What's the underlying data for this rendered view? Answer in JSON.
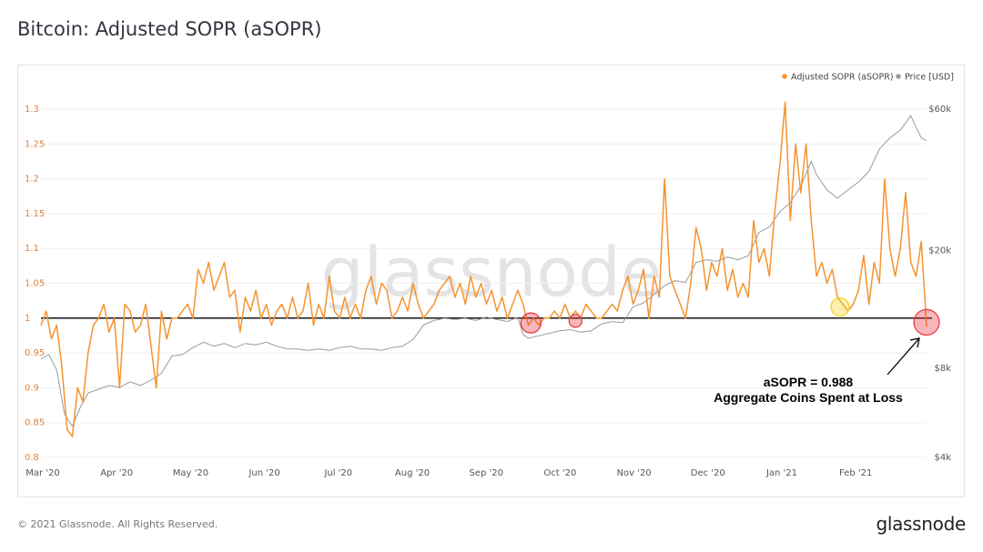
{
  "header": {
    "title": "Bitcoin: Adjusted SOPR (aSOPR)"
  },
  "footer": {
    "copyright": "© 2021 Glassnode. All Rights Reserved.",
    "logo": "glassnode"
  },
  "watermark": "glassnode",
  "colors": {
    "asopr": "#f5932f",
    "price": "#9a9a9a",
    "baseline": "#000000",
    "loss_marker": "#e8303a",
    "gain_marker": "#f2d21c"
  },
  "chart_data": {
    "type": "line",
    "title": "Bitcoin: Adjusted SOPR (aSOPR)",
    "x_ticks": [
      "Mar '20",
      "Apr '20",
      "May '20",
      "Jun '20",
      "Jul '20",
      "Aug '20",
      "Sep '20",
      "Oct '20",
      "Nov '20",
      "Dec '20",
      "Jan '21",
      "Feb '21"
    ],
    "y_left": {
      "ticks": [
        "1.3",
        "1.25",
        "1.2",
        "1.15",
        "1.1",
        "1.05",
        "1",
        "0.95",
        "0.9",
        "0.85",
        "0.8"
      ],
      "range": [
        0.8,
        1.3
      ]
    },
    "y_right": {
      "ticks": [
        "$60k",
        "$20k",
        "$8k",
        "$4k"
      ],
      "scale": "log",
      "range": [
        4000,
        60000
      ]
    },
    "legend": {
      "position": "top-right",
      "items": [
        {
          "label": "Adjusted SOPR (aSOPR)",
          "color": "#f5932f"
        },
        {
          "label": "Price [USD]",
          "color": "#9a9a9a"
        }
      ]
    },
    "baseline": 1.0,
    "annotation": {
      "line1": "aSOPR = 0.988",
      "line2": "Aggregate Coins Spent at Loss"
    },
    "series": [
      {
        "name": "Adjusted SOPR (aSOPR)",
        "axis": "left",
        "points": [
          [
            0,
            0.99
          ],
          [
            2,
            1.01
          ],
          [
            4,
            0.97
          ],
          [
            6,
            0.99
          ],
          [
            8,
            0.93
          ],
          [
            10,
            0.84
          ],
          [
            12,
            0.83
          ],
          [
            14,
            0.9
          ],
          [
            16,
            0.88
          ],
          [
            18,
            0.95
          ],
          [
            20,
            0.99
          ],
          [
            22,
            1.0
          ],
          [
            24,
            1.02
          ],
          [
            26,
            0.98
          ],
          [
            28,
            1.0
          ],
          [
            30,
            0.9
          ],
          [
            32,
            1.02
          ],
          [
            34,
            1.01
          ],
          [
            36,
            0.98
          ],
          [
            38,
            0.99
          ],
          [
            40,
            1.02
          ],
          [
            42,
            0.96
          ],
          [
            44,
            0.9
          ],
          [
            46,
            1.01
          ],
          [
            48,
            0.97
          ],
          [
            50,
            1.0
          ],
          [
            52,
            1.0
          ],
          [
            54,
            1.01
          ],
          [
            56,
            1.02
          ],
          [
            58,
            1.0
          ],
          [
            60,
            1.07
          ],
          [
            62,
            1.05
          ],
          [
            64,
            1.08
          ],
          [
            66,
            1.04
          ],
          [
            68,
            1.06
          ],
          [
            70,
            1.08
          ],
          [
            72,
            1.03
          ],
          [
            74,
            1.04
          ],
          [
            76,
            0.98
          ],
          [
            78,
            1.03
          ],
          [
            80,
            1.01
          ],
          [
            82,
            1.04
          ],
          [
            84,
            1.0
          ],
          [
            86,
            1.02
          ],
          [
            88,
            0.99
          ],
          [
            90,
            1.01
          ],
          [
            92,
            1.02
          ],
          [
            94,
            1.0
          ],
          [
            96,
            1.03
          ],
          [
            98,
            1.0
          ],
          [
            100,
            1.01
          ],
          [
            102,
            1.05
          ],
          [
            104,
            0.99
          ],
          [
            106,
            1.02
          ],
          [
            108,
            1.0
          ],
          [
            110,
            1.06
          ],
          [
            112,
            1.01
          ],
          [
            114,
            1.0
          ],
          [
            116,
            1.03
          ],
          [
            118,
            1.0
          ],
          [
            120,
            1.02
          ],
          [
            122,
            1.0
          ],
          [
            124,
            1.04
          ],
          [
            126,
            1.06
          ],
          [
            128,
            1.02
          ],
          [
            130,
            1.05
          ],
          [
            132,
            1.04
          ],
          [
            134,
            1.0
          ],
          [
            136,
            1.01
          ],
          [
            138,
            1.03
          ],
          [
            140,
            1.01
          ],
          [
            142,
            1.05
          ],
          [
            144,
            1.02
          ],
          [
            146,
            1.0
          ],
          [
            148,
            1.01
          ],
          [
            150,
            1.02
          ],
          [
            152,
            1.04
          ],
          [
            154,
            1.05
          ],
          [
            156,
            1.06
          ],
          [
            158,
            1.03
          ],
          [
            160,
            1.05
          ],
          [
            162,
            1.02
          ],
          [
            164,
            1.06
          ],
          [
            166,
            1.03
          ],
          [
            168,
            1.05
          ],
          [
            170,
            1.02
          ],
          [
            172,
            1.04
          ],
          [
            174,
            1.01
          ],
          [
            176,
            1.03
          ],
          [
            178,
            1.0
          ],
          [
            180,
            1.02
          ],
          [
            182,
            1.04
          ],
          [
            184,
            1.02
          ],
          [
            186,
            0.99
          ],
          [
            188,
            1.0
          ],
          [
            190,
            0.99
          ],
          [
            192,
            1.0
          ],
          [
            194,
            1.0
          ],
          [
            196,
            1.01
          ],
          [
            198,
            1.0
          ],
          [
            200,
            1.02
          ],
          [
            202,
            1.0
          ],
          [
            204,
            1.01
          ],
          [
            206,
            1.0
          ],
          [
            208,
            1.02
          ],
          [
            210,
            1.01
          ],
          [
            212,
            1.0
          ],
          [
            214,
            1.0
          ],
          [
            216,
            1.01
          ],
          [
            218,
            1.02
          ],
          [
            220,
            1.01
          ],
          [
            222,
            1.04
          ],
          [
            224,
            1.06
          ],
          [
            226,
            1.02
          ],
          [
            228,
            1.04
          ],
          [
            230,
            1.07
          ],
          [
            232,
            1.0
          ],
          [
            234,
            1.06
          ],
          [
            236,
            1.03
          ],
          [
            238,
            1.2
          ],
          [
            240,
            1.06
          ],
          [
            242,
            1.04
          ],
          [
            244,
            1.02
          ],
          [
            246,
            1.0
          ],
          [
            248,
            1.05
          ],
          [
            250,
            1.13
          ],
          [
            252,
            1.1
          ],
          [
            254,
            1.04
          ],
          [
            256,
            1.08
          ],
          [
            258,
            1.06
          ],
          [
            260,
            1.1
          ],
          [
            262,
            1.04
          ],
          [
            264,
            1.07
          ],
          [
            266,
            1.03
          ],
          [
            268,
            1.05
          ],
          [
            270,
            1.03
          ],
          [
            272,
            1.14
          ],
          [
            274,
            1.08
          ],
          [
            276,
            1.1
          ],
          [
            278,
            1.06
          ],
          [
            280,
            1.15
          ],
          [
            282,
            1.22
          ],
          [
            284,
            1.31
          ],
          [
            286,
            1.14
          ],
          [
            288,
            1.25
          ],
          [
            290,
            1.18
          ],
          [
            292,
            1.25
          ],
          [
            294,
            1.14
          ],
          [
            296,
            1.06
          ],
          [
            298,
            1.08
          ],
          [
            300,
            1.05
          ],
          [
            302,
            1.07
          ],
          [
            304,
            1.03
          ],
          [
            306,
            1.02
          ],
          [
            308,
            1.01
          ],
          [
            310,
            1.02
          ],
          [
            312,
            1.04
          ],
          [
            314,
            1.09
          ],
          [
            316,
            1.02
          ],
          [
            318,
            1.08
          ],
          [
            320,
            1.05
          ],
          [
            322,
            1.2
          ],
          [
            324,
            1.1
          ],
          [
            326,
            1.06
          ],
          [
            328,
            1.1
          ],
          [
            330,
            1.18
          ],
          [
            332,
            1.08
          ],
          [
            334,
            1.06
          ],
          [
            336,
            1.11
          ],
          [
            338,
            0.988
          ]
        ]
      },
      {
        "name": "Price [USD]",
        "axis": "right",
        "points": [
          [
            0,
            8600
          ],
          [
            3,
            8900
          ],
          [
            6,
            7900
          ],
          [
            9,
            5600
          ],
          [
            12,
            5100
          ],
          [
            15,
            5900
          ],
          [
            18,
            6600
          ],
          [
            22,
            6800
          ],
          [
            26,
            7000
          ],
          [
            30,
            6900
          ],
          [
            34,
            7200
          ],
          [
            38,
            7000
          ],
          [
            42,
            7300
          ],
          [
            46,
            7700
          ],
          [
            50,
            8800
          ],
          [
            54,
            8900
          ],
          [
            58,
            9400
          ],
          [
            62,
            9800
          ],
          [
            66,
            9500
          ],
          [
            70,
            9700
          ],
          [
            74,
            9400
          ],
          [
            78,
            9700
          ],
          [
            82,
            9600
          ],
          [
            86,
            9800
          ],
          [
            90,
            9500
          ],
          [
            94,
            9300
          ],
          [
            98,
            9300
          ],
          [
            102,
            9200
          ],
          [
            106,
            9300
          ],
          [
            110,
            9200
          ],
          [
            114,
            9400
          ],
          [
            118,
            9500
          ],
          [
            122,
            9300
          ],
          [
            126,
            9300
          ],
          [
            130,
            9200
          ],
          [
            134,
            9400
          ],
          [
            138,
            9500
          ],
          [
            142,
            10000
          ],
          [
            146,
            11200
          ],
          [
            150,
            11600
          ],
          [
            154,
            11800
          ],
          [
            158,
            11700
          ],
          [
            162,
            11800
          ],
          [
            166,
            11600
          ],
          [
            170,
            11900
          ],
          [
            174,
            11700
          ],
          [
            178,
            11500
          ],
          [
            182,
            11900
          ],
          [
            184,
            10400
          ],
          [
            186,
            10100
          ],
          [
            190,
            10300
          ],
          [
            194,
            10500
          ],
          [
            198,
            10700
          ],
          [
            202,
            10800
          ],
          [
            206,
            10600
          ],
          [
            210,
            10700
          ],
          [
            214,
            11300
          ],
          [
            218,
            11500
          ],
          [
            222,
            11400
          ],
          [
            226,
            12900
          ],
          [
            230,
            13300
          ],
          [
            234,
            14200
          ],
          [
            238,
            15200
          ],
          [
            242,
            15800
          ],
          [
            246,
            15600
          ],
          [
            250,
            18200
          ],
          [
            254,
            18600
          ],
          [
            258,
            18400
          ],
          [
            262,
            19000
          ],
          [
            266,
            18600
          ],
          [
            270,
            19200
          ],
          [
            274,
            23000
          ],
          [
            278,
            24000
          ],
          [
            282,
            27000
          ],
          [
            286,
            29000
          ],
          [
            290,
            33000
          ],
          [
            294,
            40000
          ],
          [
            296,
            36000
          ],
          [
            300,
            32000
          ],
          [
            304,
            30000
          ],
          [
            308,
            32000
          ],
          [
            312,
            34000
          ],
          [
            316,
            37000
          ],
          [
            320,
            44000
          ],
          [
            324,
            48000
          ],
          [
            328,
            51000
          ],
          [
            332,
            57000
          ],
          [
            334,
            52000
          ],
          [
            336,
            48000
          ],
          [
            338,
            47000
          ]
        ]
      }
    ],
    "markers": [
      {
        "x": 187,
        "y": 0.993,
        "type": "loss",
        "size": "large"
      },
      {
        "x": 204,
        "y": 0.996,
        "type": "loss",
        "size": "small"
      },
      {
        "x": 305,
        "y": 1.016,
        "type": "gain",
        "size": "medium"
      },
      {
        "x": 338,
        "y": 0.994,
        "type": "loss",
        "size": "large"
      }
    ]
  }
}
